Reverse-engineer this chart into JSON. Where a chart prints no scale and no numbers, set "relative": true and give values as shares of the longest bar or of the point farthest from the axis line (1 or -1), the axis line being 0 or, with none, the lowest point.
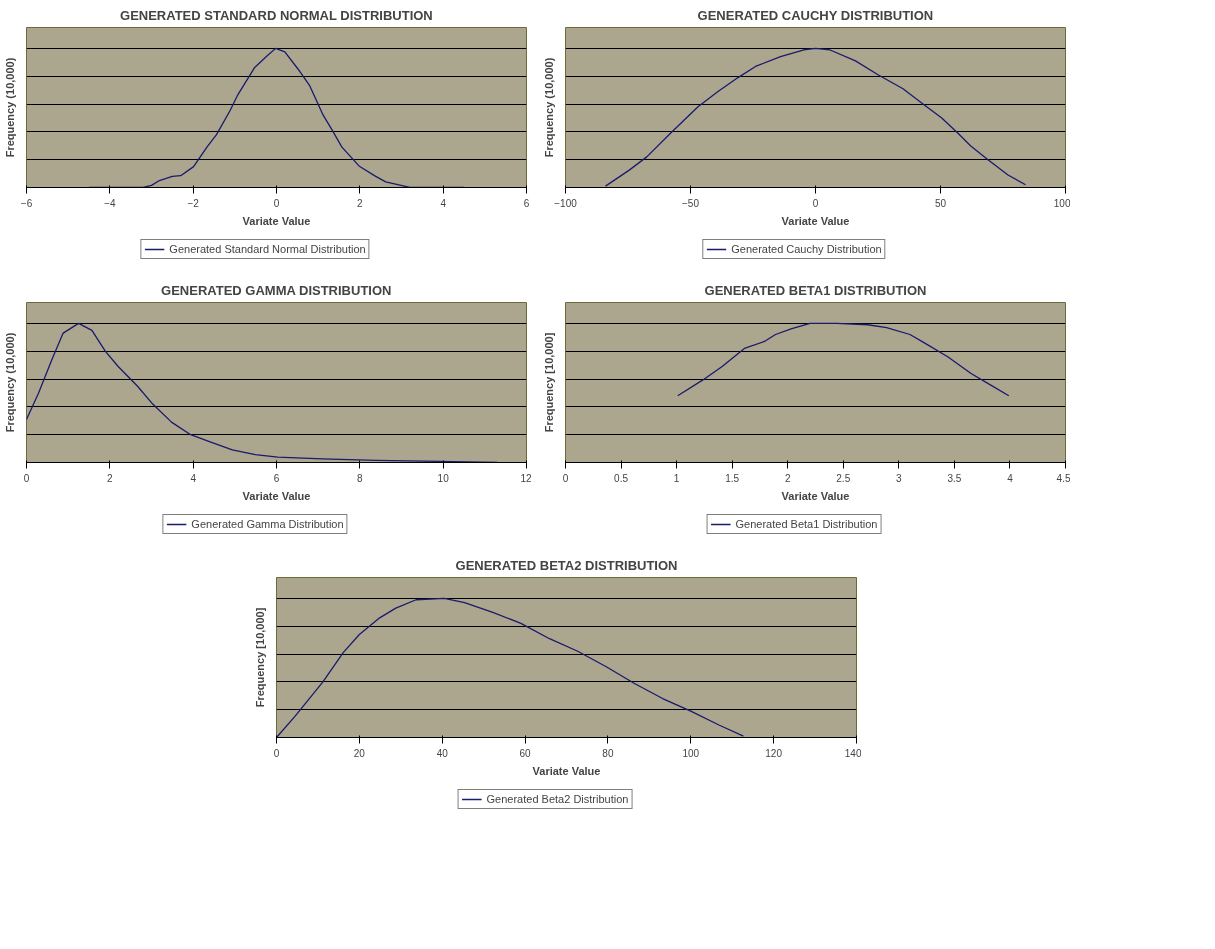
{
  "chart_data": [
    {
      "type": "line",
      "title": "GENERATED STANDARD NORMAL DISTRIBUTION",
      "xlabel": "Variate Value",
      "ylabel": "Frequency (10,000)",
      "relative": true,
      "xlim": [
        -6,
        6
      ],
      "xticks": [
        -6,
        -4,
        -2,
        0,
        2,
        4,
        6
      ],
      "grid": "y",
      "legend": "bottom",
      "series": [
        {
          "name": "Generated Standard Normal Distribution",
          "color": "#1a1a6e",
          "x": [
            -4.5,
            -3.2,
            -3.0,
            -2.81,
            -2.5,
            -2.3,
            -1.99,
            -1.67,
            -1.44,
            -1.12,
            -0.94,
            -0.53,
            -0.21,
            -0.02,
            0.2,
            0.52,
            0.8,
            1.12,
            1.34,
            1.57,
            1.98,
            2.35,
            2.62,
            2.99,
            3.2,
            4.5
          ],
          "values": [
            0,
            0,
            0.015,
            0.05,
            0.08,
            0.085,
            0.15,
            0.29,
            0.38,
            0.55,
            0.66,
            0.86,
            0.95,
            1.0,
            0.975,
            0.85,
            0.73,
            0.52,
            0.41,
            0.29,
            0.155,
            0.085,
            0.04,
            0.015,
            0,
            0
          ]
        }
      ]
    },
    {
      "type": "line",
      "title": "GENERATED CAUCHY DISTRIBUTION",
      "xlabel": "Variate Value",
      "ylabel": "Frequency (10,000)",
      "relative": true,
      "xlim": [
        -100,
        100
      ],
      "xticks": [
        -100,
        -50,
        0,
        50,
        100
      ],
      "grid": "y",
      "legend": "bottom",
      "series": [
        {
          "name": "Generated Cauchy Distribution",
          "color": "#1a1a6e",
          "x": [
            -84,
            -74.5,
            -67.5,
            -58,
            -47,
            -39,
            -31,
            -24,
            -14,
            -4.6,
            0,
            5.6,
            16,
            25,
            35,
            43,
            50.5,
            57,
            62,
            69,
            77,
            84
          ],
          "values": [
            0.01,
            0.125,
            0.22,
            0.39,
            0.58,
            0.69,
            0.79,
            0.87,
            0.94,
            0.99,
            1.0,
            0.99,
            0.91,
            0.81,
            0.71,
            0.6,
            0.5,
            0.39,
            0.3,
            0.2,
            0.09,
            0.02
          ]
        }
      ]
    },
    {
      "type": "line",
      "title": "GENERATED GAMMA DISTRIBUTION",
      "xlabel": "Variate Value",
      "ylabel": "Frequency (10,000)",
      "relative": true,
      "xlim": [
        0,
        12
      ],
      "xticks": [
        0,
        2,
        4,
        6,
        8,
        10,
        12
      ],
      "grid": "y",
      "legend": "bottom",
      "series": [
        {
          "name": "Generated Gamma Distribution",
          "color": "#1a1a6e",
          "x": [
            0,
            0.29,
            0.61,
            0.88,
            1.25,
            1.57,
            1.89,
            2.2,
            2.66,
            3.03,
            3.48,
            3.94,
            4.39,
            4.94,
            5.49,
            6.03,
            7.1,
            8.4,
            9.9,
            11.3
          ],
          "values": [
            0.31,
            0.5,
            0.74,
            0.93,
            1.0,
            0.95,
            0.8,
            0.69,
            0.55,
            0.42,
            0.29,
            0.2,
            0.15,
            0.09,
            0.056,
            0.038,
            0.026,
            0.015,
            0.008,
            0
          ]
        }
      ]
    },
    {
      "type": "line",
      "title": "GENERATED BETA1 DISTRIBUTION",
      "xlabel": "Variate Value",
      "ylabel": "Frequency [10,000]",
      "relative": true,
      "xlim": [
        0,
        4.5
      ],
      "xticks": [
        0,
        0.5,
        1,
        1.5,
        2,
        2.5,
        3,
        3.5,
        4,
        4.5
      ],
      "grid": "y",
      "legend": "bottom",
      "series": [
        {
          "name": "Generated Beta1 Distribution",
          "color": "#1a1a6e",
          "x": [
            1.01,
            1.23,
            1.41,
            1.61,
            1.79,
            1.89,
            2.03,
            2.2,
            2.44,
            2.72,
            2.89,
            3.1,
            3.23,
            3.44,
            3.65,
            3.82,
            3.99
          ],
          "values": [
            0.48,
            0.59,
            0.69,
            0.82,
            0.87,
            0.92,
            0.96,
            1.0,
            1.0,
            0.99,
            0.97,
            0.92,
            0.86,
            0.76,
            0.64,
            0.56,
            0.48
          ]
        }
      ]
    },
    {
      "type": "line",
      "title": "GENERATED BETA2 DISTRIBUTION",
      "xlabel": "Variate Value",
      "ylabel": "Frequency [10,000]",
      "relative": true,
      "xlim": [
        0,
        140
      ],
      "xticks": [
        0,
        20,
        40,
        60,
        80,
        100,
        120,
        140
      ],
      "grid": "y",
      "legend": "bottom",
      "series": [
        {
          "name": "Generated Beta2 Distribution",
          "color": "#1a1a6e",
          "x": [
            0,
            4.4,
            11.2,
            16.1,
            20,
            24.9,
            28.8,
            33.7,
            40.5,
            45.4,
            52.2,
            59,
            65.9,
            72.7,
            79.5,
            86.3,
            93.2,
            100,
            106.8,
            112.7
          ],
          "values": [
            0,
            0.15,
            0.4,
            0.61,
            0.74,
            0.86,
            0.93,
            0.99,
            1.0,
            0.97,
            0.9,
            0.82,
            0.71,
            0.62,
            0.51,
            0.39,
            0.28,
            0.19,
            0.09,
            0.01
          ]
        }
      ]
    }
  ]
}
